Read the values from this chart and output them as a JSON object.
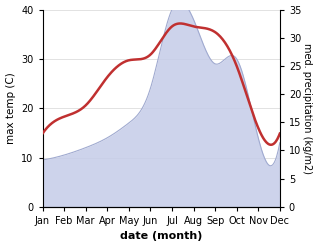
{
  "months": [
    "Jan",
    "Feb",
    "Mar",
    "Apr",
    "May",
    "Jun",
    "Jul",
    "Aug",
    "Sep",
    "Oct",
    "Nov",
    "Dec"
  ],
  "temperature": [
    9.5,
    10.5,
    12,
    14,
    17,
    24,
    40,
    38,
    29,
    30,
    14,
    13
  ],
  "precipitation": [
    13,
    16,
    18,
    23,
    26,
    27,
    32,
    32,
    31,
    25,
    14,
    13
  ],
  "temp_fill_color": "#c5cce8",
  "temp_line_color": "#a0aad0",
  "precip_color": "#c03030",
  "left_ylim": [
    0,
    40
  ],
  "right_ylim": [
    0,
    35
  ],
  "left_yticks": [
    0,
    10,
    20,
    30,
    40
  ],
  "right_yticks": [
    0,
    5,
    10,
    15,
    20,
    25,
    30,
    35
  ],
  "left_ylabel": "max temp (C)",
  "right_ylabel": "med. precipitation (kg/m2)",
  "xlabel": "date (month)",
  "bg_color": "#ffffff",
  "grid_color": "#dddddd"
}
